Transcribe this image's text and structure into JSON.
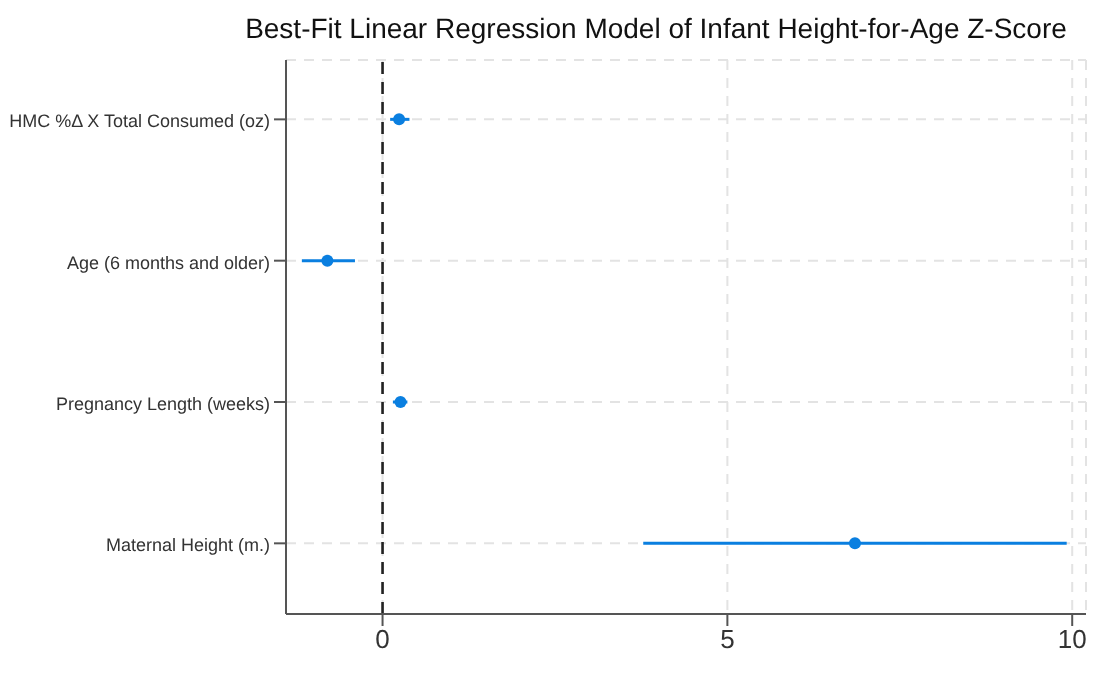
{
  "chart_data": {
    "type": "scatter",
    "orientation": "horizontal",
    "title": "Best-Fit Linear Regression Model of Infant Height-for-Age Z-Score",
    "categories": [
      "HMC %Δ X Total Consumed (oz)",
      "Age (6 months and older)",
      "Pregnancy Length (weeks)",
      "Maternal Height (m.)"
    ],
    "values": [
      0.24,
      -0.8,
      0.26,
      6.85
    ],
    "errors": [
      [
        0.11,
        0.39
      ],
      [
        -1.17,
        -0.4
      ],
      [
        0.15,
        0.36
      ],
      [
        3.78,
        9.92
      ]
    ],
    "color": "#0a7fe0",
    "xlim": [
      -1.4,
      10.2
    ],
    "xticks": [
      0,
      5,
      10
    ],
    "ref_lines": [
      {
        "axis": "x",
        "value": 0,
        "color": "#222222",
        "line_style": "dashed"
      }
    ],
    "grid": true,
    "marker": "circle"
  }
}
